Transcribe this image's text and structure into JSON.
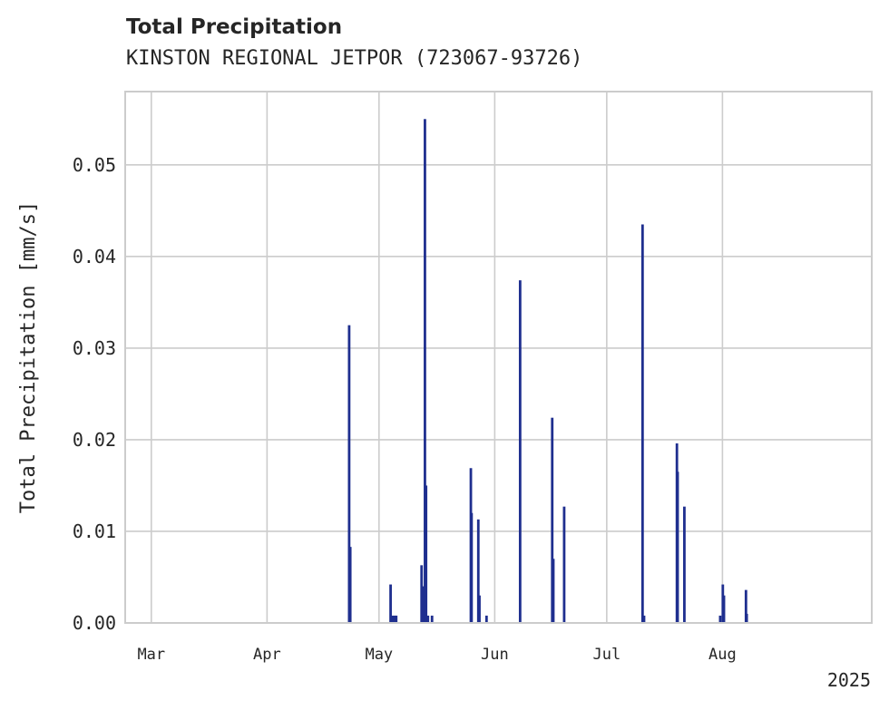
{
  "chart_data": {
    "type": "bar",
    "title": "Total Precipitation",
    "subtitle": "KINSTON REGIONAL JETPOR (723067-93726)",
    "xlabel": "",
    "ylabel": "Total Precipitation [mm/s]",
    "year_label": "2025",
    "x_range_days": [
      -7,
      193
    ],
    "ylim": [
      0,
      0.058
    ],
    "grid": true,
    "bar_color": "#1f2f8f",
    "x_ticks": [
      {
        "label": "Mar",
        "day": 0
      },
      {
        "label": "Apr",
        "day": 31
      },
      {
        "label": "May",
        "day": 61
      },
      {
        "label": "Jun",
        "day": 92
      },
      {
        "label": "Jul",
        "day": 122
      },
      {
        "label": "Aug",
        "day": 153
      }
    ],
    "y_ticks": [
      {
        "label": "0.00",
        "value": 0
      },
      {
        "label": "0.01",
        "value": 0.01
      },
      {
        "label": "0.02",
        "value": 0.02
      },
      {
        "label": "0.03",
        "value": 0.03
      },
      {
        "label": "0.04",
        "value": 0.04
      },
      {
        "label": "0.05",
        "value": 0.05
      }
    ],
    "series": [
      {
        "name": "Total Precipitation",
        "points": [
          {
            "day": 53.0,
            "value": 0.0325
          },
          {
            "day": 53.3,
            "value": 0.0083
          },
          {
            "day": 64.1,
            "value": 0.0042
          },
          {
            "day": 64.6,
            "value": 0.0008
          },
          {
            "day": 65.2,
            "value": 0.0008
          },
          {
            "day": 65.6,
            "value": 0.0008
          },
          {
            "day": 72.4,
            "value": 0.0063
          },
          {
            "day": 72.9,
            "value": 0.004
          },
          {
            "day": 73.3,
            "value": 0.055
          },
          {
            "day": 73.6,
            "value": 0.015
          },
          {
            "day": 74.1,
            "value": 0.0008
          },
          {
            "day": 75.2,
            "value": 0.0008
          },
          {
            "day": 85.6,
            "value": 0.0169
          },
          {
            "day": 85.8,
            "value": 0.012
          },
          {
            "day": 87.6,
            "value": 0.0113
          },
          {
            "day": 87.9,
            "value": 0.003
          },
          {
            "day": 89.8,
            "value": 0.0008
          },
          {
            "day": 98.8,
            "value": 0.0374
          },
          {
            "day": 107.4,
            "value": 0.0224
          },
          {
            "day": 107.7,
            "value": 0.007
          },
          {
            "day": 110.6,
            "value": 0.0127
          },
          {
            "day": 131.6,
            "value": 0.0435
          },
          {
            "day": 132.0,
            "value": 0.0008
          },
          {
            "day": 140.8,
            "value": 0.0196
          },
          {
            "day": 141.0,
            "value": 0.0165
          },
          {
            "day": 142.8,
            "value": 0.0127
          },
          {
            "day": 152.4,
            "value": 0.0008
          },
          {
            "day": 153.1,
            "value": 0.0042
          },
          {
            "day": 153.4,
            "value": 0.003
          },
          {
            "day": 159.3,
            "value": 0.0036
          },
          {
            "day": 159.5,
            "value": 0.001
          }
        ]
      }
    ]
  }
}
